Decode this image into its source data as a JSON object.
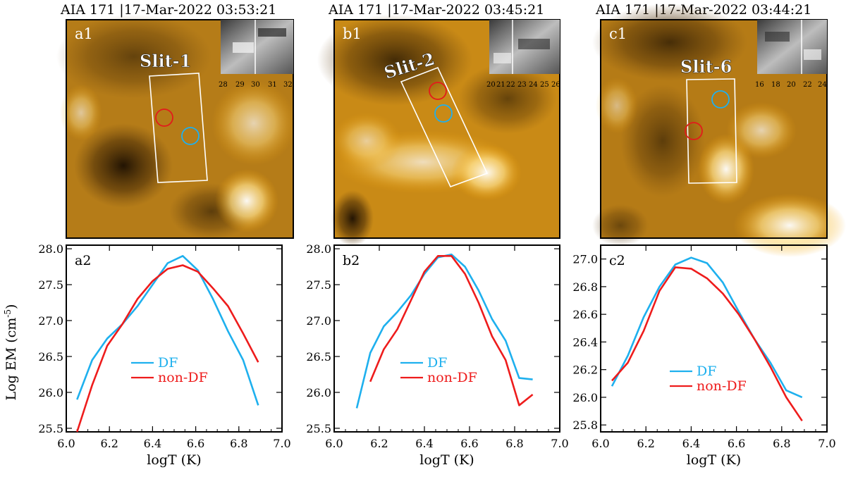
{
  "colors": {
    "df": "#1eb0ee",
    "nondf": "#ee1c1c",
    "slit_box": "#ffffff"
  },
  "panels": [
    {
      "id": "a",
      "header": "AIA 171  |17-Mar-2022 03:53:21",
      "image_label": "a1",
      "slit_label": "Slit-1",
      "inset_ticks": [
        "28",
        "29",
        "30",
        "31",
        "32"
      ],
      "plot_label": "a2",
      "legend": {
        "df": "DF",
        "nondf": "non-DF"
      }
    },
    {
      "id": "b",
      "header": "AIA 171  |17-Mar-2022 03:45:21",
      "image_label": "b1",
      "slit_label": "Slit-2",
      "inset_ticks": [
        "20",
        "21",
        "22",
        "23",
        "24",
        "25",
        "26"
      ],
      "plot_label": "b2",
      "legend": {
        "df": "DF",
        "nondf": "non-DF"
      }
    },
    {
      "id": "c",
      "header": "AIA 171  |17-Mar-2022 03:44:21",
      "image_label": "c1",
      "slit_label": "Slit-6",
      "inset_ticks": [
        "16",
        "18",
        "20",
        "22",
        "24"
      ],
      "plot_label": "c2",
      "legend": {
        "df": "DF",
        "nondf": "non-DF"
      }
    }
  ],
  "chart_data": [
    {
      "type": "line",
      "panel": "a2",
      "xlabel": "logT (K)",
      "ylabel": "Log EM (cm-5)",
      "xlim": [
        6.0,
        7.0
      ],
      "ylim": [
        25.45,
        28.05
      ],
      "xticks": [
        "6.0",
        "6.2",
        "6.4",
        "6.6",
        "6.8",
        "7.0"
      ],
      "yticks": [
        "25.5",
        "26.0",
        "26.5",
        "27.0",
        "27.5",
        "28.0"
      ],
      "series": [
        {
          "name": "DF",
          "x": [
            6.05,
            6.12,
            6.19,
            6.26,
            6.33,
            6.4,
            6.47,
            6.54,
            6.61,
            6.68,
            6.75,
            6.82,
            6.89
          ],
          "y": [
            25.9,
            26.45,
            26.75,
            26.95,
            27.2,
            27.5,
            27.8,
            27.9,
            27.7,
            27.3,
            26.85,
            26.45,
            25.82
          ]
        },
        {
          "name": "non-DF",
          "x": [
            6.05,
            6.12,
            6.19,
            6.26,
            6.33,
            6.4,
            6.47,
            6.54,
            6.61,
            6.68,
            6.75,
            6.82,
            6.89
          ],
          "y": [
            25.45,
            26.1,
            26.65,
            26.95,
            27.3,
            27.55,
            27.72,
            27.77,
            27.68,
            27.45,
            27.2,
            26.82,
            26.42
          ]
        }
      ]
    },
    {
      "type": "line",
      "panel": "b2",
      "xlabel": "logT (K)",
      "ylabel": "",
      "xlim": [
        6.0,
        7.0
      ],
      "ylim": [
        25.45,
        28.05
      ],
      "xticks": [
        "6.0",
        "6.2",
        "6.4",
        "6.6",
        "6.8",
        "7.0"
      ],
      "yticks": [
        "25.5",
        "26.0",
        "26.5",
        "27.0",
        "27.5",
        "28.0"
      ],
      "series": [
        {
          "name": "DF",
          "x": [
            6.1,
            6.16,
            6.22,
            6.28,
            6.34,
            6.4,
            6.46,
            6.52,
            6.58,
            6.64,
            6.7,
            6.76,
            6.82,
            6.88
          ],
          "y": [
            25.78,
            26.55,
            26.92,
            27.12,
            27.35,
            27.65,
            27.88,
            27.92,
            27.75,
            27.42,
            27.02,
            26.72,
            26.2,
            26.18
          ]
        },
        {
          "name": "non-DF",
          "x": [
            6.16,
            6.22,
            6.28,
            6.34,
            6.4,
            6.46,
            6.52,
            6.58,
            6.64,
            6.7,
            6.76,
            6.82,
            6.88
          ],
          "y": [
            26.15,
            26.6,
            26.88,
            27.28,
            27.68,
            27.9,
            27.9,
            27.65,
            27.25,
            26.78,
            26.45,
            25.82,
            25.97
          ]
        }
      ]
    },
    {
      "type": "line",
      "panel": "c2",
      "xlabel": "logT (K)",
      "ylabel": "",
      "xlim": [
        6.0,
        7.0
      ],
      "ylim": [
        25.75,
        27.1
      ],
      "xticks": [
        "6.0",
        "6.2",
        "6.4",
        "6.6",
        "6.8",
        "7.0"
      ],
      "yticks": [
        "25.8",
        "26.0",
        "26.2",
        "26.4",
        "26.6",
        "26.8",
        "27.0"
      ],
      "series": [
        {
          "name": "DF",
          "x": [
            6.05,
            6.12,
            6.19,
            6.26,
            6.33,
            6.4,
            6.47,
            6.54,
            6.61,
            6.68,
            6.75,
            6.82,
            6.89
          ],
          "y": [
            26.08,
            26.3,
            26.58,
            26.8,
            26.96,
            27.01,
            26.97,
            26.83,
            26.62,
            26.42,
            26.25,
            26.05,
            26.0
          ]
        },
        {
          "name": "non-DF",
          "x": [
            6.05,
            6.12,
            6.19,
            6.26,
            6.33,
            6.4,
            6.47,
            6.54,
            6.61,
            6.68,
            6.75,
            6.82,
            6.89
          ],
          "y": [
            26.12,
            26.25,
            26.48,
            26.77,
            26.94,
            26.93,
            26.86,
            26.75,
            26.6,
            26.42,
            26.22,
            26.0,
            25.83
          ]
        }
      ]
    }
  ]
}
